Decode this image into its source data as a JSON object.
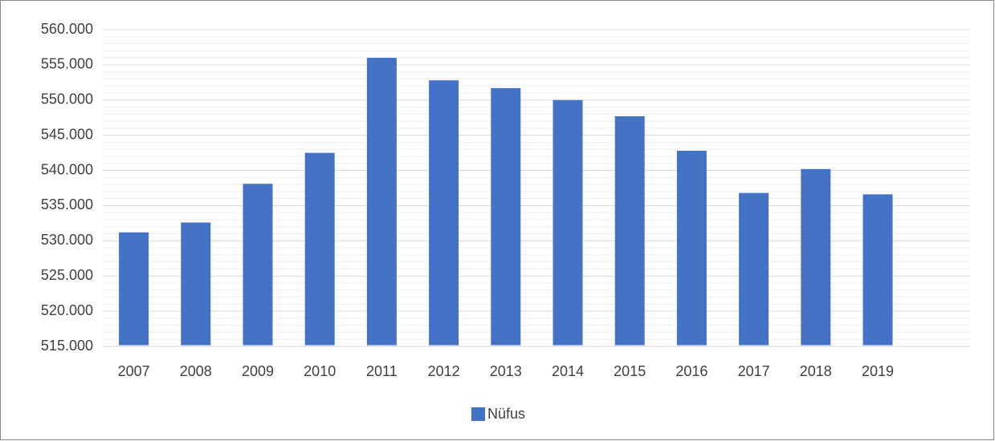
{
  "chart_data": {
    "type": "bar",
    "categories": [
      "2007",
      "2008",
      "2009",
      "2010",
      "2011",
      "2012",
      "2013",
      "2014",
      "2015",
      "2016",
      "2017",
      "2018",
      "2019"
    ],
    "series": [
      {
        "name": "Nüfus",
        "color": "#4472c4",
        "values": [
          531200,
          532600,
          538100,
          542500,
          556000,
          552800,
          551700,
          550000,
          547700,
          542800,
          536800,
          540200,
          536600
        ]
      }
    ],
    "ylim": [
      515000,
      560000
    ],
    "yticks": [
      {
        "value": 515000,
        "label": "515.000"
      },
      {
        "value": 520000,
        "label": "520.000"
      },
      {
        "value": 525000,
        "label": "525.000"
      },
      {
        "value": 530000,
        "label": "530.000"
      },
      {
        "value": 535000,
        "label": "535.000"
      },
      {
        "value": 540000,
        "label": "540.000"
      },
      {
        "value": 545000,
        "label": "545.000"
      },
      {
        "value": 550000,
        "label": "550.000"
      },
      {
        "value": 555000,
        "label": "555.000"
      },
      {
        "value": 560000,
        "label": "560.000"
      }
    ],
    "grid": true,
    "minor_grid": true,
    "legend": "bottom"
  }
}
